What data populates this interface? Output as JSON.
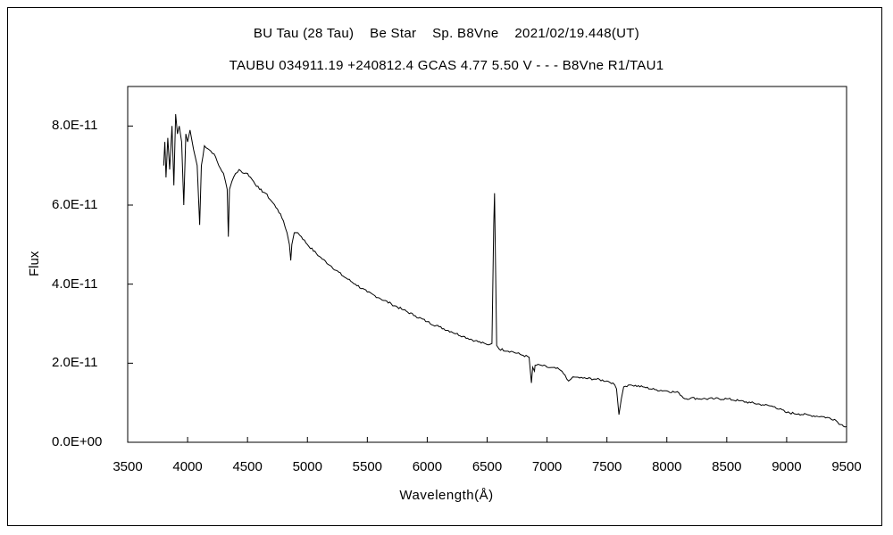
{
  "chart_data": {
    "type": "line",
    "title": "BU Tau (28 Tau)    Be Star    Sp. B8Vne    2021/02/19.448(UT)",
    "subtitle": "TAUBU 034911.19 +240812.4 GCAS 4.77 5.50 V - - - B8Vne R1/TAU1",
    "xlabel": "Wavelength(Å)",
    "ylabel": "Flux",
    "xlim": [
      3500,
      9500
    ],
    "ylim": [
      0,
      9e-11
    ],
    "x_ticks": [
      3500,
      4000,
      4500,
      5000,
      5500,
      6000,
      6500,
      7000,
      7500,
      8000,
      8500,
      9000,
      9500
    ],
    "x_tick_labels": [
      "3500",
      "4000",
      "4500",
      "5000",
      "5500",
      "6000",
      "6500",
      "7000",
      "7500",
      "8000",
      "8500",
      "9000",
      "9500"
    ],
    "y_ticks": [
      0,
      2e-11,
      4e-11,
      6e-11,
      8e-11
    ],
    "y_tick_labels": [
      "0.0E+00",
      "2.0E-11",
      "4.0E-11",
      "6.0E-11",
      "8.0E-11"
    ],
    "grid": false,
    "legend": "none",
    "line_color": "#000000",
    "series": [
      {
        "x": [
          3800,
          3810,
          3820,
          3835,
          3850,
          3870,
          3885,
          3900,
          3915,
          3930,
          3950,
          3968,
          3985,
          4000,
          4020,
          4050,
          4080,
          4101,
          4115,
          4140,
          4180,
          4220,
          4260,
          4300,
          4330,
          4340,
          4350,
          4370,
          4400,
          4430,
          4471,
          4500,
          4550,
          4600,
          4650,
          4700,
          4750,
          4800,
          4830,
          4850,
          4861,
          4870,
          4890,
          4920,
          4950,
          5000,
          5100,
          5200,
          5300,
          5400,
          5500,
          5600,
          5700,
          5800,
          5900,
          6000,
          6100,
          6200,
          6300,
          6400,
          6500,
          6540,
          6555,
          6562,
          6570,
          6580,
          6600,
          6700,
          6800,
          6850,
          6870,
          6880,
          6895,
          6900,
          6950,
          7000,
          7100,
          7150,
          7180,
          7200,
          7230,
          7300,
          7400,
          7500,
          7550,
          7580,
          7600,
          7620,
          7640,
          7680,
          7700,
          7800,
          7900,
          8000,
          8100,
          8150,
          8200,
          8300,
          8400,
          8500,
          8600,
          8700,
          8800,
          8900,
          9000,
          9100,
          9200,
          9300,
          9400,
          9450,
          9500
        ],
        "y": [
          7e-11,
          7.6e-11,
          6.7e-11,
          7.7e-11,
          6.9e-11,
          8e-11,
          6.5e-11,
          8.3e-11,
          7.8e-11,
          8e-11,
          7.6e-11,
          6e-11,
          7.8e-11,
          7.6e-11,
          7.9e-11,
          7.4e-11,
          7e-11,
          5.5e-11,
          7e-11,
          7.5e-11,
          7.4e-11,
          7.3e-11,
          7e-11,
          6.8e-11,
          6.4e-11,
          5.2e-11,
          6.4e-11,
          6.6e-11,
          6.8e-11,
          6.9e-11,
          6.8e-11,
          6.8e-11,
          6.6e-11,
          6.4e-11,
          6.3e-11,
          6.1e-11,
          5.9e-11,
          5.6e-11,
          5.3e-11,
          5e-11,
          4.6e-11,
          5e-11,
          5.3e-11,
          5.3e-11,
          5.2e-11,
          5e-11,
          4.7e-11,
          4.45e-11,
          4.2e-11,
          4e-11,
          3.8e-11,
          3.65e-11,
          3.5e-11,
          3.35e-11,
          3.2e-11,
          3.05e-11,
          2.92e-11,
          2.8e-11,
          2.68e-11,
          2.57e-11,
          2.47e-11,
          2.5e-11,
          5.5e-11,
          6.3e-11,
          4.5e-11,
          2.45e-11,
          2.36e-11,
          2.3e-11,
          2.2e-11,
          2.15e-11,
          1.5e-11,
          1.9e-11,
          1.8e-11,
          1.95e-11,
          1.95e-11,
          1.9e-11,
          1.85e-11,
          1.7e-11,
          1.55e-11,
          1.6e-11,
          1.65e-11,
          1.62e-11,
          1.6e-11,
          1.55e-11,
          1.5e-11,
          1.35e-11,
          7e-12,
          1.1e-11,
          1.4e-11,
          1.45e-11,
          1.45e-11,
          1.4e-11,
          1.33e-11,
          1.3e-11,
          1.25e-11,
          1.1e-11,
          1.12e-11,
          1.1e-11,
          1.1e-11,
          1.1e-11,
          1.05e-11,
          1e-11,
          9.5e-12,
          9e-12,
          7.5e-12,
          7.2e-12,
          6.8e-12,
          6.5e-12,
          5.8e-12,
          4.5e-12,
          4e-12
        ]
      }
    ]
  }
}
